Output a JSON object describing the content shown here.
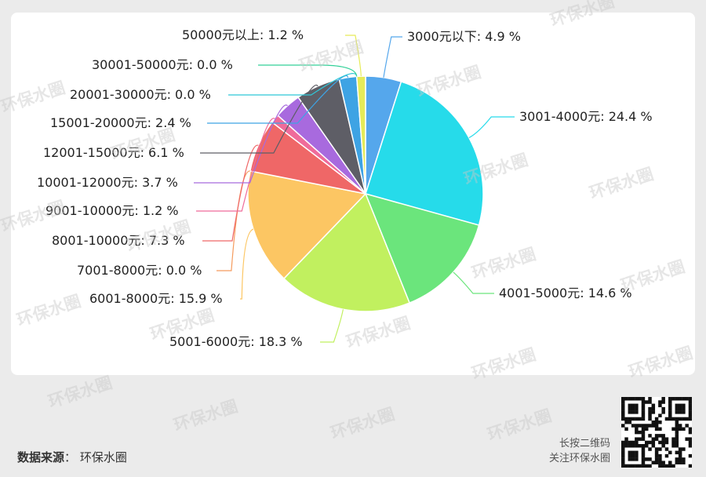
{
  "chart_data": {
    "type": "pie",
    "slices": [
      {
        "label": "3000元以下: 4.9 %",
        "value": 4.9,
        "color": "#55a7ec"
      },
      {
        "label": "3001-4000元: 24.4 %",
        "value": 24.4,
        "color": "#26dbea"
      },
      {
        "label": "4001-5000元: 14.6 %",
        "value": 14.6,
        "color": "#6be57c"
      },
      {
        "label": "5001-6000元: 18.3 %",
        "value": 18.3,
        "color": "#c1f05f"
      },
      {
        "label": "6001-8000元: 15.9 %",
        "value": 15.9,
        "color": "#fcc663"
      },
      {
        "label": "7001-8000元: 0.0 %",
        "value": 0.0,
        "color": "#f59b5d"
      },
      {
        "label": "8001-10000元: 7.3 %",
        "value": 7.3,
        "color": "#ef6767"
      },
      {
        "label": "9001-10000元: 1.2 %",
        "value": 1.2,
        "color": "#ef6b9a"
      },
      {
        "label": "10001-12000元: 3.7 %",
        "value": 3.7,
        "color": "#a86ade"
      },
      {
        "label": "12001-15000元: 6.1 %",
        "value": 6.1,
        "color": "#5e5e66"
      },
      {
        "label": "15001-20000元: 2.4 %",
        "value": 2.4,
        "color": "#3ea3e4"
      },
      {
        "label": "20001-30000元: 0.0 %",
        "value": 0.0,
        "color": "#2fc7d8"
      },
      {
        "label": "30001-50000元: 0.0 %",
        "value": 0.0,
        "color": "#33d199"
      },
      {
        "label": "50000元以上: 1.2 %",
        "value": 1.2,
        "color": "#e6eb58"
      }
    ]
  },
  "footer": {
    "source_key": "数据来源",
    "source_sep": "：",
    "source_value": "环保水圈",
    "qr_line1": "长按二维码",
    "qr_line2": "关注环保水圈"
  },
  "watermark_text": "环保水圈",
  "qr_icon": "qr-code-icon"
}
